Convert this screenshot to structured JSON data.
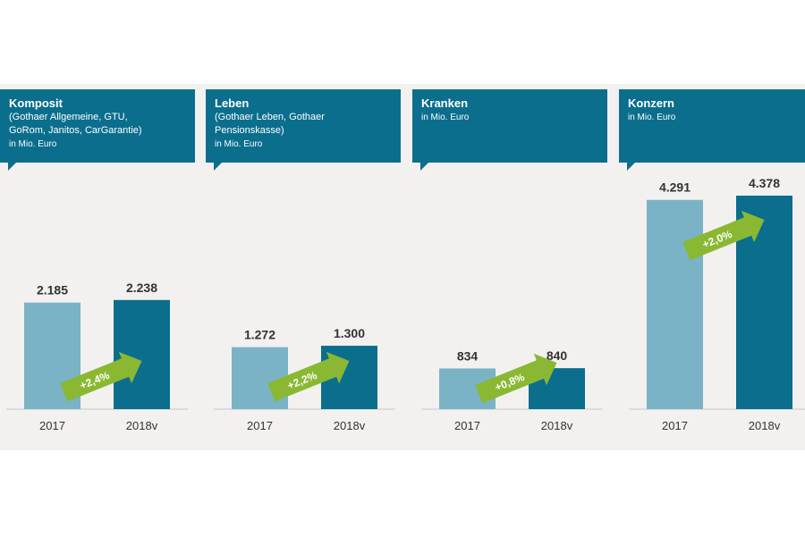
{
  "colors": {
    "header": "#0b6e8d",
    "bar_2017": "#7ab3c6",
    "bar_2018": "#0b6e8d",
    "arrow": "#8ab832",
    "panel": "#f2f1ef"
  },
  "headers": [
    {
      "title": "Komposit",
      "sub": "(Gothaer Allgemeine,  GTU,\nGoRom, Janitos, CarGarantie)",
      "unit": "in Mio. Euro"
    },
    {
      "title": "Leben",
      "sub": "(Gothaer Leben,  Gothaer\nPensionskasse)",
      "unit": "in Mio. Euro"
    },
    {
      "title": "Kranken",
      "sub": "",
      "unit": "in Mio. Euro"
    },
    {
      "title": "Konzern",
      "sub": "",
      "unit": "in Mio. Euro"
    }
  ],
  "chart_data": [
    {
      "type": "bar",
      "title": "Komposit",
      "categories": [
        "2017",
        "2018v"
      ],
      "values": [
        2185,
        2238
      ],
      "labels": [
        "2.185",
        "2.238"
      ],
      "growth": "+2,4%",
      "ylim": [
        0,
        4378
      ]
    },
    {
      "type": "bar",
      "title": "Leben",
      "categories": [
        "2017",
        "2018v"
      ],
      "values": [
        1272,
        1300
      ],
      "labels": [
        "1.272",
        "1.300"
      ],
      "growth": "+2,2%",
      "ylim": [
        0,
        4378
      ]
    },
    {
      "type": "bar",
      "title": "Kranken",
      "categories": [
        "2017",
        "2018v"
      ],
      "values": [
        834,
        840
      ],
      "labels": [
        "834",
        "840"
      ],
      "growth": "+0,8%",
      "ylim": [
        0,
        4378
      ]
    },
    {
      "type": "bar",
      "title": "Konzern",
      "categories": [
        "2017",
        "2018v"
      ],
      "values": [
        4291,
        4378
      ],
      "labels": [
        "4.291",
        "4.378"
      ],
      "growth": "+2,0%",
      "ylim": [
        0,
        4378
      ]
    }
  ]
}
